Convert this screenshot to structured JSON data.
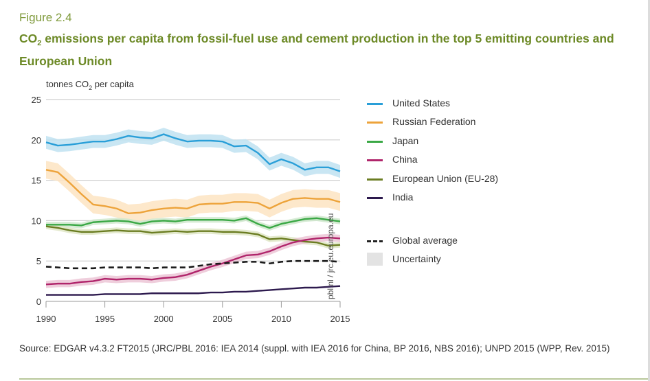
{
  "figure_label": "Figure 2.4",
  "title_parts": {
    "pre": "CO",
    "sub": "2",
    "post": " emissions per capita from fossil-fuel use and cement production in the top 5 emitting countries and European Union"
  },
  "ylabel_parts": {
    "pre": "tonnes CO",
    "sub": "2",
    "post": " per capita"
  },
  "watermark": "pbl.nl / jrc.eu.europa.eu",
  "source": "Source: EDGAR v4.3.2 FT2015 (JRC/PBL 2016: IEA 2014 (suppl. with IEA 2016 for China, BP 2016, NBS 2016); UNPD 2015 (WPP, Rev. 2015)",
  "legend": {
    "items": [
      {
        "label": "United States",
        "color": "#2a9fd8"
      },
      {
        "label": "Russian Federation",
        "color": "#eda33a"
      },
      {
        "label": "Japan",
        "color": "#3aa845"
      },
      {
        "label": "China",
        "color": "#b0256b"
      },
      {
        "label": "European Union (EU-28)",
        "color": "#6b7d22"
      },
      {
        "label": "India",
        "color": "#2d1a4e"
      }
    ],
    "global_label": "Global average",
    "uncertainty_label": "Uncertainty"
  },
  "chart_data": {
    "type": "line",
    "title": "CO2 emissions per capita from fossil-fuel use and cement production in the top 5 emitting countries and European Union",
    "xlabel": "",
    "ylabel": "tonnes CO2 per capita",
    "xlim": [
      1990,
      2015
    ],
    "ylim": [
      0,
      25
    ],
    "x_ticks": [
      1990,
      1995,
      2000,
      2005,
      2010,
      2015
    ],
    "y_ticks": [
      0,
      5,
      10,
      15,
      20,
      25
    ],
    "grid": "horizontal",
    "legend_position": "right",
    "x": [
      1990,
      1991,
      1992,
      1993,
      1994,
      1995,
      1996,
      1997,
      1998,
      1999,
      2000,
      2001,
      2002,
      2003,
      2004,
      2005,
      2006,
      2007,
      2008,
      2009,
      2010,
      2011,
      2012,
      2013,
      2014,
      2015
    ],
    "series": [
      {
        "name": "United States",
        "color": "#2a9fd8",
        "band_color": "#bfe2f1",
        "uncertainty": 0.8,
        "values": [
          19.7,
          19.3,
          19.4,
          19.6,
          19.8,
          19.8,
          20.1,
          20.5,
          20.3,
          20.2,
          20.7,
          20.2,
          19.8,
          19.9,
          19.9,
          19.8,
          19.2,
          19.3,
          18.4,
          17.0,
          17.6,
          17.1,
          16.3,
          16.6,
          16.6,
          16.1
        ]
      },
      {
        "name": "Russian Federation",
        "color": "#eda33a",
        "band_color": "#fde4c2",
        "uncertainty": 1.1,
        "values": [
          16.3,
          16.0,
          14.7,
          13.3,
          12.0,
          11.8,
          11.5,
          10.9,
          11.0,
          11.3,
          11.5,
          11.6,
          11.5,
          12.0,
          12.1,
          12.1,
          12.3,
          12.3,
          12.2,
          11.5,
          12.2,
          12.7,
          12.8,
          12.7,
          12.7,
          12.3
        ]
      },
      {
        "name": "Japan",
        "color": "#3aa845",
        "band_color": "#cfe8cd",
        "uncertainty": 0.35,
        "values": [
          9.5,
          9.5,
          9.5,
          9.4,
          9.8,
          9.9,
          10.0,
          9.9,
          9.6,
          9.9,
          10.0,
          9.9,
          10.1,
          10.1,
          10.1,
          10.1,
          10.0,
          10.3,
          9.6,
          9.1,
          9.6,
          9.9,
          10.2,
          10.3,
          10.1,
          9.9
        ]
      },
      {
        "name": "European Union (EU-28)",
        "color": "#6b7d22",
        "band_color": "#dfe6c5",
        "uncertainty": 0.35,
        "values": [
          9.3,
          9.1,
          8.8,
          8.6,
          8.6,
          8.7,
          8.8,
          8.7,
          8.7,
          8.5,
          8.6,
          8.7,
          8.6,
          8.7,
          8.7,
          8.6,
          8.6,
          8.5,
          8.3,
          7.7,
          7.8,
          7.6,
          7.4,
          7.3,
          6.9,
          7.0
        ]
      },
      {
        "name": "China",
        "color": "#b0256b",
        "band_color": "#ecc5d6",
        "uncertainty": 0.45,
        "values": [
          2.1,
          2.2,
          2.2,
          2.4,
          2.5,
          2.8,
          2.7,
          2.8,
          2.8,
          2.7,
          2.9,
          3.0,
          3.3,
          3.8,
          4.3,
          4.7,
          5.2,
          5.7,
          5.8,
          6.2,
          6.8,
          7.3,
          7.6,
          7.8,
          7.9,
          7.8
        ]
      },
      {
        "name": "India",
        "color": "#2d1a4e",
        "band_color": "#d6d0e0",
        "uncertainty": 0.08,
        "values": [
          0.8,
          0.8,
          0.8,
          0.8,
          0.8,
          0.9,
          0.9,
          0.9,
          0.9,
          1.0,
          1.0,
          1.0,
          1.0,
          1.0,
          1.1,
          1.1,
          1.2,
          1.2,
          1.3,
          1.4,
          1.5,
          1.6,
          1.7,
          1.7,
          1.8,
          1.9
        ]
      },
      {
        "name": "Global average",
        "color": "#1a1a1a",
        "dashed": true,
        "values": [
          4.3,
          4.2,
          4.1,
          4.1,
          4.1,
          4.2,
          4.2,
          4.2,
          4.2,
          4.1,
          4.2,
          4.2,
          4.2,
          4.4,
          4.6,
          4.7,
          4.8,
          4.9,
          4.9,
          4.7,
          4.9,
          5.0,
          5.0,
          5.0,
          5.0,
          4.9
        ]
      }
    ]
  }
}
